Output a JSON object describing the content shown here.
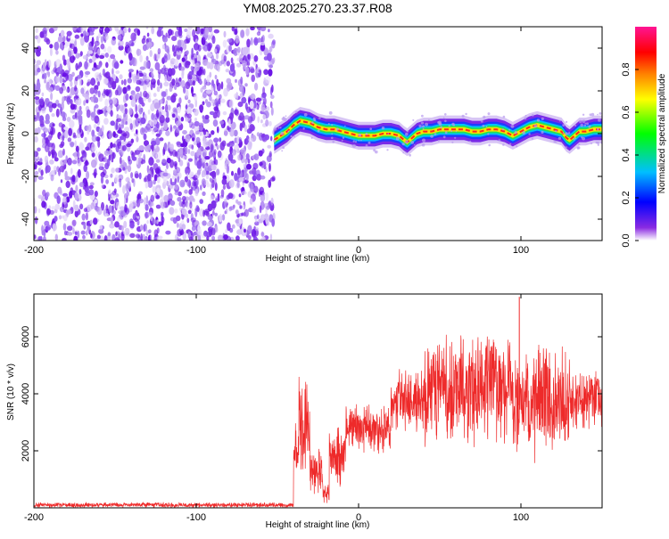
{
  "title": "YM08.2025.270.23.37.R08",
  "chart_data": [
    {
      "type": "heatmap",
      "xlabel": "Height of straight line (km)",
      "ylabel": "Frequency (Hz)",
      "xlim": [
        -200,
        150
      ],
      "ylim": [
        -50,
        50
      ],
      "xticks": [
        -200,
        -100,
        0,
        100
      ],
      "yticks": [
        -40,
        -20,
        0,
        20,
        40
      ],
      "noise_region_x": [
        -200,
        -52
      ],
      "colorbar": {
        "label": "Normalized spectral amplitude",
        "range": [
          0,
          1
        ],
        "ticks": [
          "0.0",
          "0.2",
          "0.4",
          "0.6",
          "0.8"
        ],
        "colors": [
          "#ffffff",
          "#8a2be2",
          "#0000ff",
          "#00bfff",
          "#00ff00",
          "#ffff00",
          "#ff8000",
          "#ff0000",
          "#ff1493"
        ]
      },
      "ridge": {
        "x": [
          -52,
          -48,
          -44,
          -40,
          -36,
          -30,
          -25,
          -20,
          -15,
          -10,
          -5,
          0,
          5,
          10,
          15,
          20,
          25,
          28,
          30,
          33,
          36,
          40,
          45,
          50,
          55,
          60,
          65,
          70,
          75,
          80,
          85,
          90,
          95,
          100,
          105,
          110,
          115,
          120,
          125,
          128,
          130,
          133,
          136,
          140,
          145,
          150
        ],
        "y": [
          -3,
          -1,
          1,
          4,
          6,
          5,
          3,
          2,
          2,
          1,
          0,
          -1,
          -1,
          -1,
          0,
          0,
          -1,
          -3,
          -4,
          -2,
          0,
          1,
          1,
          2,
          2,
          2,
          2,
          1,
          1,
          2,
          2,
          1,
          -1,
          1,
          3,
          4,
          3,
          2,
          1,
          -2,
          -3,
          -1,
          1,
          1,
          2,
          2
        ]
      }
    },
    {
      "type": "line",
      "xlabel": "Height of straight line (km)",
      "ylabel": "SNR (10 * v/v)",
      "xlim": [
        -200,
        150
      ],
      "ylim": [
        0,
        7500
      ],
      "xticks": [
        -200,
        -100,
        0,
        100
      ],
      "yticks": [
        2000,
        4000,
        6000
      ],
      "color": "#ee2a2a",
      "segments": [
        {
          "x_from": -200,
          "x_to": -40,
          "mean": 100,
          "amp": 100
        },
        {
          "x_from": -40,
          "x_to": -37,
          "mean": 2000,
          "amp": 1200
        },
        {
          "x_from": -37,
          "x_to": -30,
          "mean": 3000,
          "amp": 2300
        },
        {
          "x_from": -30,
          "x_to": -22,
          "mean": 1300,
          "amp": 1000
        },
        {
          "x_from": -22,
          "x_to": -18,
          "mean": 500,
          "amp": 400
        },
        {
          "x_from": -18,
          "x_to": -8,
          "mean": 1800,
          "amp": 1200
        },
        {
          "x_from": -8,
          "x_to": 20,
          "mean": 2800,
          "amp": 1000
        },
        {
          "x_from": 20,
          "x_to": 40,
          "mean": 3800,
          "amp": 1300
        },
        {
          "x_from": 40,
          "x_to": 90,
          "mean": 4200,
          "amp": 2200
        },
        {
          "x_from": 90,
          "x_to": 130,
          "mean": 3700,
          "amp": 2300
        },
        {
          "x_from": 130,
          "x_to": 150,
          "mean": 3800,
          "amp": 1200
        }
      ],
      "peak": {
        "x": 99,
        "y": 7400
      }
    }
  ]
}
